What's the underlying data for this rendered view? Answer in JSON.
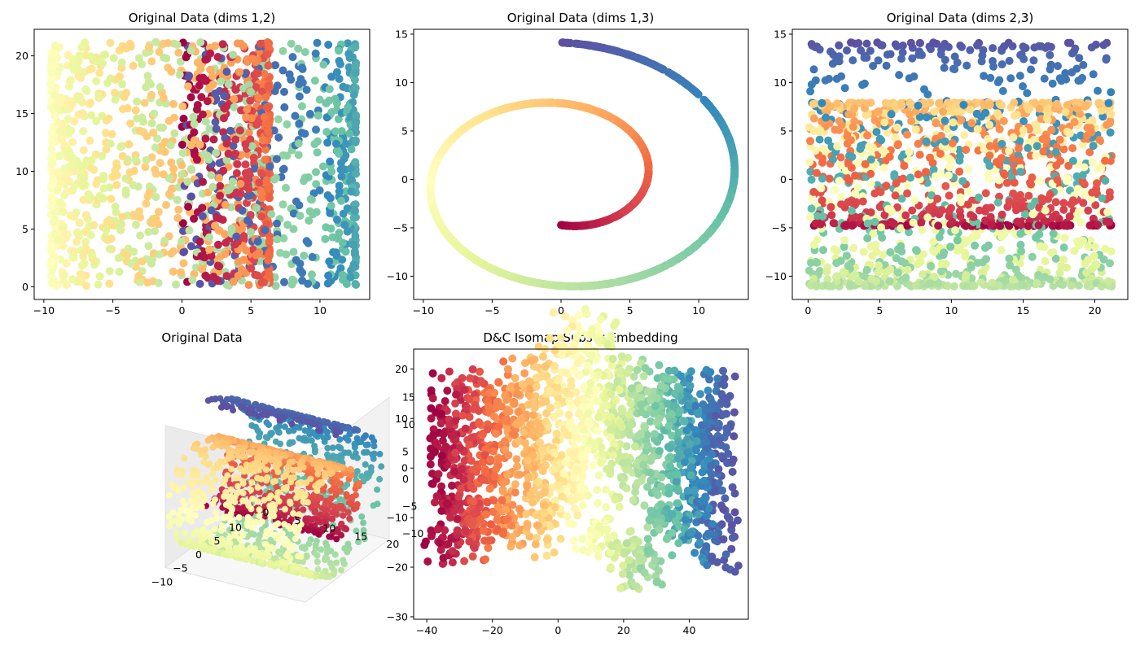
{
  "figure": {
    "background": "#ffffff"
  },
  "colormap": {
    "name": "Spectral",
    "stops": [
      "#9e0142",
      "#d53e4f",
      "#f46d43",
      "#fdae61",
      "#fee08b",
      "#ffffbf",
      "#e6f598",
      "#abdda4",
      "#66c2a5",
      "#3288bd",
      "#5e4fa2"
    ]
  },
  "chart_data": [
    {
      "id": "dims12",
      "type": "scatter",
      "title": "Original Data (dims 1,2)",
      "xlabel": "",
      "ylabel": "",
      "xlim": [
        -10.7,
        13.6
      ],
      "ylim": [
        -1.1,
        22.3
      ],
      "xticks": [
        -10,
        -5,
        0,
        5,
        10
      ],
      "yticks": [
        0,
        5,
        10,
        15,
        20
      ],
      "grid": false,
      "color_by": "position along spiral (Spectral colormap)",
      "roll": {
        "t_min": 4.71,
        "t_max": 14.14,
        "height_min": 0,
        "height_max": 21.2
      }
    },
    {
      "id": "dims13",
      "type": "scatter",
      "title": "Original Data (dims 1,3)",
      "xlabel": "",
      "ylabel": "",
      "xlim": [
        -10.7,
        13.6
      ],
      "ylim": [
        -12.4,
        15.5
      ],
      "xticks": [
        -10,
        -5,
        0,
        5,
        10
      ],
      "yticks": [
        -10,
        -5,
        0,
        5,
        10,
        15
      ],
      "grid": false
    },
    {
      "id": "dims23",
      "type": "scatter",
      "title": "Original Data (dims 2,3)",
      "xlabel": "",
      "ylabel": "",
      "xlim": [
        -1.1,
        22.3
      ],
      "ylim": [
        -12.4,
        15.5
      ],
      "xticks": [
        0,
        5,
        10,
        15,
        20
      ],
      "yticks": [
        -10,
        -5,
        0,
        5,
        10,
        15
      ],
      "grid": false
    },
    {
      "id": "original3d",
      "type": "scatter",
      "title": "Original Data",
      "x_ticks": [
        -10,
        -5,
        0,
        5,
        10
      ],
      "y_ticks": [
        0,
        5,
        10,
        15,
        20
      ],
      "z_ticks": [
        -10,
        -5,
        0,
        5,
        10,
        15
      ],
      "grid": true
    },
    {
      "id": "embedding",
      "type": "scatter",
      "title": "D&C Isomap Subset Embedding",
      "xlabel": "",
      "ylabel": "",
      "xlim": [
        -44,
        58
      ],
      "ylim": [
        -30.5,
        24
      ],
      "xticks": [
        -40,
        -20,
        0,
        20,
        40
      ],
      "yticks": [
        -30,
        -20,
        -10,
        0,
        10,
        20
      ],
      "grid": false
    }
  ]
}
